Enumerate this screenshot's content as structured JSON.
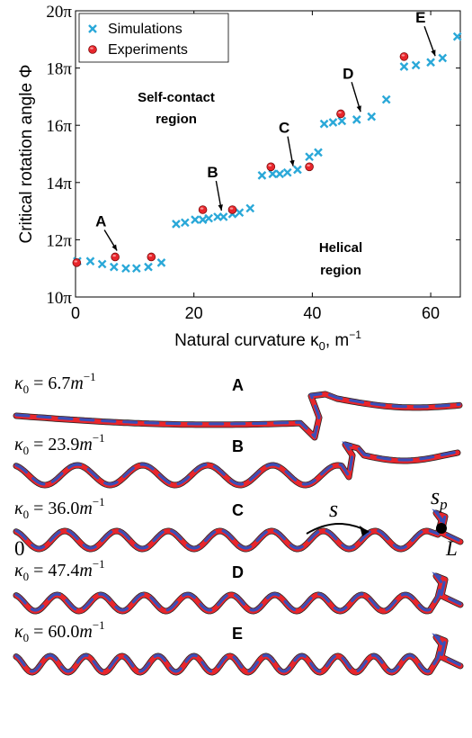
{
  "chart_data": {
    "type": "scatter",
    "xlabel": "Natural curvature κ",
    "xlabel_sub": "0",
    "xlabel_unit": ", m",
    "xlabel_exp": "−1",
    "ylabel": "Critical rotation angle Φ",
    "xlim": [
      0,
      65
    ],
    "ylim": [
      10,
      20
    ],
    "x_ticks": [
      "0",
      "20",
      "40",
      "60"
    ],
    "x_tick_values": [
      0,
      20,
      40,
      60
    ],
    "y_ticks": [
      "10π",
      "12π",
      "14π",
      "16π",
      "18π",
      "20π"
    ],
    "y_tick_values": [
      10,
      12,
      14,
      16,
      18,
      20
    ],
    "grid": false,
    "legend_position": "top-left",
    "series": [
      {
        "name": "Simulations",
        "marker": "x",
        "color": "#2aa8d8",
        "x": [
          0.3,
          2.5,
          4.5,
          6.5,
          8.5,
          10.3,
          12.3,
          14.5,
          17.0,
          18.5,
          20.2,
          21.5,
          22.5,
          24.0,
          25.0,
          26.5,
          27.7,
          29.5,
          31.5,
          33.3,
          34.5,
          35.8,
          37.5,
          39.5,
          41.0,
          42.0,
          43.5,
          45.0,
          47.5,
          50.0,
          52.5,
          55.5,
          57.5,
          60.0,
          62.0,
          64.5
        ],
        "y": [
          11.25,
          11.25,
          11.15,
          11.05,
          11.0,
          11.0,
          11.05,
          11.2,
          12.55,
          12.6,
          12.7,
          12.7,
          12.75,
          12.8,
          12.8,
          12.9,
          12.95,
          13.1,
          14.25,
          14.3,
          14.3,
          14.35,
          14.45,
          14.9,
          15.05,
          16.05,
          16.1,
          16.15,
          16.2,
          16.3,
          16.9,
          18.05,
          18.1,
          18.2,
          18.35,
          19.1
        ]
      },
      {
        "name": "Experiments",
        "marker": "o",
        "color": "#e8262c",
        "x": [
          0.2,
          6.7,
          12.8,
          21.5,
          26.5,
          33.0,
          39.5,
          44.8,
          55.5
        ],
        "y": [
          11.2,
          11.4,
          11.4,
          13.05,
          13.05,
          14.55,
          14.55,
          16.4,
          18.4
        ]
      }
    ],
    "annotations": [
      {
        "label": "A",
        "x": 6.7,
        "y": 11.4
      },
      {
        "label": "B",
        "x": 23.9,
        "y": 12.8
      },
      {
        "label": "C",
        "x": 36.0,
        "y": 14.35
      },
      {
        "label": "D",
        "x": 47.4,
        "y": 16.25
      },
      {
        "label": "E",
        "x": 60.0,
        "y": 18.2
      }
    ],
    "region_labels": [
      {
        "line1": "Self-contact",
        "line2": "region",
        "x": 22.5,
        "y": 16.9
      },
      {
        "line1": "Helical",
        "line2": "region",
        "x": 44.5,
        "y": 11.3
      }
    ]
  },
  "rods": [
    {
      "label": "A",
      "prefix": "κ",
      "sub": "0",
      "eq": " = 6.7",
      "unit": "m",
      "exp": "−1",
      "kappa": 6.7
    },
    {
      "label": "B",
      "prefix": "κ",
      "sub": "0",
      "eq": " = 23.9",
      "unit": "m",
      "exp": "−1",
      "kappa": 23.9
    },
    {
      "label": "C",
      "prefix": "κ",
      "sub": "0",
      "eq": " = 36.0",
      "unit": "m",
      "exp": "−1",
      "kappa": 36.0
    },
    {
      "label": "D",
      "prefix": "κ",
      "sub": "0",
      "eq": " = 47.4",
      "unit": "m",
      "exp": "−1",
      "kappa": 47.4
    },
    {
      "label": "E",
      "prefix": "κ",
      "sub": "0",
      "eq": " = 60.0",
      "unit": "m",
      "exp": "−1",
      "kappa": 60.0
    }
  ],
  "rod_c_labels": {
    "s": "s",
    "sp_main": "s",
    "sp_sub": "p",
    "start": "0",
    "end": "L"
  },
  "colors": {
    "rod_red": "#e8262c",
    "rod_blue": "#3a4fb8",
    "rod_dark": "#222222",
    "axis": "#000000"
  }
}
